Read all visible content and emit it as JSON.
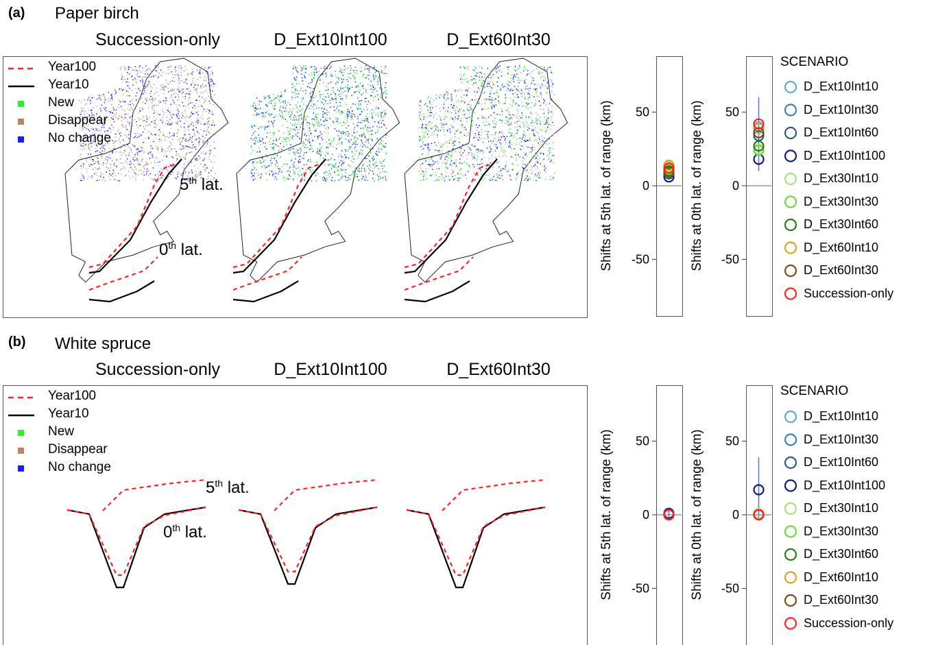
{
  "panels": [
    {
      "label": "(a)",
      "species": "Paper birch",
      "map_titles": [
        "Succession-only",
        "D_Ext10Int100",
        "D_Ext60Int30"
      ],
      "legend": [
        {
          "label": "Year100",
          "kind": "dashed",
          "color": "#ff2020"
        },
        {
          "label": "Year10",
          "kind": "solid",
          "color": "#000000"
        },
        {
          "label": "New",
          "kind": "square",
          "color": "#33ee33"
        },
        {
          "label": "Disappear",
          "kind": "square",
          "color": "#b8876a"
        },
        {
          "label": "No change",
          "kind": "square",
          "color": "#1a1aff"
        }
      ],
      "lat_labels": [
        {
          "base": "5",
          "sup": "th",
          "tail": " lat."
        },
        {
          "base": "0",
          "sup": "th",
          "tail": " lat."
        }
      ],
      "scenario_title": "SCENARIO"
    },
    {
      "label": "(b)",
      "species": "White spruce",
      "map_titles": [
        "Succession-only",
        "D_Ext10Int100",
        "D_Ext60Int30"
      ],
      "legend": [
        {
          "label": "Year100",
          "kind": "dashed",
          "color": "#ff2020"
        },
        {
          "label": "Year10",
          "kind": "solid",
          "color": "#000000"
        },
        {
          "label": "New",
          "kind": "square",
          "color": "#33ee33"
        },
        {
          "label": "Disappear",
          "kind": "square",
          "color": "#b8876a"
        },
        {
          "label": "No change",
          "kind": "square",
          "color": "#1a1aff"
        }
      ],
      "lat_labels": [
        {
          "base": "5",
          "sup": "th",
          "tail": " lat."
        },
        {
          "base": "0",
          "sup": "th",
          "tail": " lat."
        }
      ],
      "scenario_title": "SCENARIO"
    }
  ],
  "scenarios": [
    {
      "name": "D_Ext10Int10",
      "color": "#5fa8d3"
    },
    {
      "name": "D_Ext10Int30",
      "color": "#3a7fc0"
    },
    {
      "name": "D_Ext10Int60",
      "color": "#2a5a8a"
    },
    {
      "name": "D_Ext10Int100",
      "color": "#101a80"
    },
    {
      "name": "D_Ext30Int10",
      "color": "#a8e08a"
    },
    {
      "name": "D_Ext30Int30",
      "color": "#6dd93a"
    },
    {
      "name": "D_Ext30Int60",
      "color": "#2a7a1a"
    },
    {
      "name": "D_Ext60Int10",
      "color": "#e0a020"
    },
    {
      "name": "D_Ext60Int30",
      "color": "#7a4a1a"
    },
    {
      "name": "Succession-only",
      "color": "#ff2020"
    }
  ],
  "chart_data": [
    {
      "type": "scatter",
      "panel": "(a)",
      "ylabel": "Shifts at  5th  lat. of range  (km)",
      "ylim": [
        -88,
        88
      ],
      "yticks": [
        -50,
        0,
        50
      ],
      "x": "single category",
      "values": [
        12,
        10,
        8,
        6,
        13,
        11,
        9,
        14,
        10,
        12
      ],
      "error_range": [
        null,
        null
      ]
    },
    {
      "type": "scatter",
      "panel": "(a)",
      "ylabel": "Shifts at  0th  lat. of range  (km)",
      "ylim": [
        -88,
        88
      ],
      "yticks": [
        -50,
        0,
        50
      ],
      "x": "single category",
      "values": [
        40,
        36,
        34,
        18,
        25,
        24,
        27,
        39,
        36,
        42
      ],
      "error_range": [
        10,
        60
      ]
    },
    {
      "type": "scatter",
      "panel": "(b)",
      "ylabel": "Shifts at  5th  lat. of range  (km)",
      "ylim": [
        -88,
        88
      ],
      "yticks": [
        -50,
        0,
        50
      ],
      "x": "single category",
      "values": [
        0,
        0,
        0,
        1,
        0,
        0,
        0,
        0,
        0,
        0
      ],
      "error_range": [
        -3,
        4
      ]
    },
    {
      "type": "scatter",
      "panel": "(b)",
      "ylabel": "Shifts at  0th  lat. of range  (km)",
      "ylim": [
        -88,
        88
      ],
      "yticks": [
        -50,
        0,
        50
      ],
      "x": "single category",
      "values": [
        1,
        0,
        0,
        17,
        1,
        0,
        0,
        0,
        0,
        0
      ],
      "error_range": [
        -2,
        39
      ]
    }
  ]
}
